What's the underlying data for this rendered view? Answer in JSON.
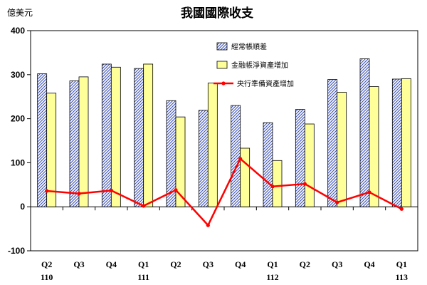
{
  "chart_data": {
    "type": "bar",
    "title": "我國國際收支",
    "ylabel": "億美元",
    "ylim": [
      -100,
      400
    ],
    "yticks": [
      -100,
      0,
      100,
      200,
      300,
      400
    ],
    "grid": false,
    "legend_position": "top-right",
    "categories": [
      "Q2",
      "Q3",
      "Q4",
      "Q1",
      "Q2",
      "Q3",
      "Q4",
      "Q1",
      "Q2",
      "Q3",
      "Q4",
      "Q1"
    ],
    "year_labels": [
      "110",
      "",
      "",
      "111",
      "",
      "",
      "",
      "112",
      "",
      "",
      "",
      "113"
    ],
    "series": [
      {
        "name": "經常帳順差",
        "kind": "bar",
        "color": "#3a4fb5",
        "pattern": "diagonal-hatch",
        "values": [
          302,
          286,
          324,
          314,
          241,
          219,
          230,
          191,
          221,
          289,
          336,
          290
        ]
      },
      {
        "name": "金融帳淨資產增加",
        "kind": "bar",
        "color": "#ffff99",
        "values": [
          258,
          295,
          317,
          324,
          204,
          281,
          133,
          105,
          188,
          260,
          273,
          291
        ]
      },
      {
        "name": "央行準備資產增加",
        "kind": "line",
        "color": "#ff0000",
        "values": [
          36,
          30,
          37,
          2,
          38,
          -42,
          109,
          46,
          52,
          10,
          33,
          -5
        ]
      }
    ]
  }
}
